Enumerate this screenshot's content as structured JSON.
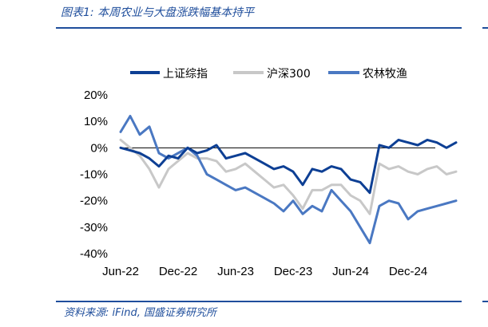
{
  "figure_title": "图表1:  本周农业与大盘涨跌幅基本持平",
  "source_note": "资料来源:  iFind, 国盛证券研究所",
  "chart_data": {
    "type": "line",
    "title": "",
    "xlabel": "",
    "ylabel": "",
    "x_ticks": [
      "Jun-22",
      "Dec-22",
      "Jun-23",
      "Dec-23",
      "Jun-24",
      "Dec-24"
    ],
    "x_tick_dates": [
      "2022-06",
      "2022-12",
      "2023-06",
      "2023-12",
      "2024-06",
      "2024-12"
    ],
    "y_ticks": [
      "20%",
      "10%",
      "0%",
      "-10%",
      "-20%",
      "-30%",
      "-40%"
    ],
    "ylim": [
      -40,
      20
    ],
    "y_unit": "%",
    "grid": false,
    "legend_position": "top",
    "series": [
      {
        "name": "上证综指",
        "color": "#0d3f94",
        "x": [
          "2022-06",
          "2022-07",
          "2022-08",
          "2022-09",
          "2022-10",
          "2022-11",
          "2022-12",
          "2023-01",
          "2023-02",
          "2023-03",
          "2023-04",
          "2023-05",
          "2023-06",
          "2023-07",
          "2023-08",
          "2023-09",
          "2023-10",
          "2023-11",
          "2023-12",
          "2024-01",
          "2024-02",
          "2024-03",
          "2024-04",
          "2024-05",
          "2024-06",
          "2024-07",
          "2024-08",
          "2024-09",
          "2024-10",
          "2024-11",
          "2024-12",
          "2025-01",
          "2025-02",
          "2025-03",
          "2025-04",
          "2025-05"
        ],
        "values": [
          0,
          -1,
          -2,
          -4,
          -7,
          -3,
          -4,
          0,
          -2,
          -1,
          1,
          -4,
          -3,
          -2,
          -4,
          -6,
          -8,
          -7,
          -9,
          -14,
          -8,
          -9,
          -7,
          -8,
          -12,
          -13,
          -17,
          1,
          0,
          3,
          2,
          1,
          3,
          2,
          0,
          2
        ]
      },
      {
        "name": "沪深300",
        "color": "#c8c8c8",
        "x": [
          "2022-06",
          "2022-07",
          "2022-08",
          "2022-09",
          "2022-10",
          "2022-11",
          "2022-12",
          "2023-01",
          "2023-02",
          "2023-03",
          "2023-04",
          "2023-05",
          "2023-06",
          "2023-07",
          "2023-08",
          "2023-09",
          "2023-10",
          "2023-11",
          "2023-12",
          "2024-01",
          "2024-02",
          "2024-03",
          "2024-04",
          "2024-05",
          "2024-06",
          "2024-07",
          "2024-08",
          "2024-09",
          "2024-10",
          "2024-11",
          "2024-12",
          "2025-01",
          "2025-02",
          "2025-03",
          "2025-04",
          "2025-05"
        ],
        "values": [
          3,
          0,
          -3,
          -8,
          -15,
          -8,
          -5,
          -2,
          -4,
          -4,
          -5,
          -9,
          -8,
          -6,
          -9,
          -12,
          -15,
          -14,
          -18,
          -23,
          -16,
          -16,
          -14,
          -14,
          -18,
          -20,
          -25,
          -6,
          -8,
          -7,
          -9,
          -10,
          -8,
          -7,
          -10,
          -9
        ]
      },
      {
        "name": "农林牧渔",
        "color": "#4a78c2",
        "x": [
          "2022-06",
          "2022-07",
          "2022-08",
          "2022-09",
          "2022-10",
          "2022-11",
          "2022-12",
          "2023-01",
          "2023-02",
          "2023-03",
          "2023-04",
          "2023-05",
          "2023-06",
          "2023-07",
          "2023-08",
          "2023-09",
          "2023-10",
          "2023-11",
          "2023-12",
          "2024-01",
          "2024-02",
          "2024-03",
          "2024-04",
          "2024-05",
          "2024-06",
          "2024-07",
          "2024-08",
          "2024-09",
          "2024-10",
          "2024-11",
          "2024-12",
          "2025-01",
          "2025-02",
          "2025-03",
          "2025-04",
          "2025-05"
        ],
        "values": [
          6,
          12,
          5,
          8,
          -2,
          -4,
          -2,
          0,
          -3,
          -10,
          -12,
          -14,
          -16,
          -15,
          -17,
          -19,
          -21,
          -24,
          -20,
          -25,
          -22,
          -24,
          -16,
          -20,
          -24,
          -30,
          -36,
          -22,
          -20,
          -21,
          -27,
          -24,
          -23,
          -22,
          -21,
          -20
        ]
      }
    ]
  }
}
